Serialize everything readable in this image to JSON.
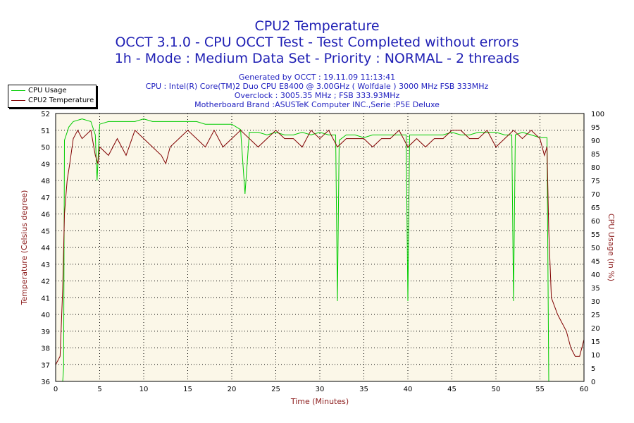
{
  "header": {
    "title": "CPU2 Temperature",
    "subtitle1": "OCCT 3.1.0 - CPU OCCT Test - Test Completed without errors",
    "subtitle2": "1h - Mode : Medium Data Set - Priority : NORMAL - 2 threads",
    "info1": "Generated by OCCT : 19.11.09 11:13:41",
    "info2": "CPU : Intel(R) Core(TM)2 Duo CPU E8400 @ 3.00GHz ( Wolfdale ) 3000 MHz FSB 333MHz",
    "info3": "Overclock : 3005.35 MHz ; FSB 333.93MHz",
    "info4": "Motherboard Brand :ASUSTeK Computer INC.,Serie :P5E Deluxe"
  },
  "legend": {
    "items": [
      {
        "label": "CPU Usage",
        "color": "#00cc00"
      },
      {
        "label": "CPU2 Temperature",
        "color": "#800000"
      }
    ]
  },
  "colors": {
    "plot_background": "#fbf7e8",
    "grid": "#000000",
    "title": "#1f1fb4",
    "axis_title": "#8b1a1a"
  },
  "chart_data": {
    "type": "line",
    "xlabel": "Time (Minutes)",
    "ylabel_left": "Temperature (Celsius degree)",
    "ylabel_right": "CPU Usage (in %)",
    "xlim": [
      0,
      60
    ],
    "ylim_left": [
      36,
      52
    ],
    "ylim_right": [
      0,
      100
    ],
    "x_ticks": [
      0,
      5,
      10,
      15,
      20,
      25,
      30,
      35,
      40,
      45,
      50,
      55,
      60
    ],
    "y_left_ticks": [
      36,
      37,
      38,
      39,
      40,
      41,
      42,
      43,
      44,
      45,
      46,
      47,
      48,
      49,
      50,
      51,
      52
    ],
    "y_right_ticks": [
      0,
      5,
      10,
      15,
      20,
      25,
      30,
      35,
      40,
      45,
      50,
      55,
      60,
      65,
      70,
      75,
      80,
      85,
      90,
      95,
      100
    ],
    "grid": true,
    "series": [
      {
        "name": "CPU Usage",
        "axis": "right",
        "color": "#00cc00",
        "x": [
          0,
          0.8,
          0.9,
          1.0,
          1.2,
          1.5,
          2,
          3,
          4,
          4.5,
          4.7,
          5,
          6,
          7,
          8,
          9,
          10,
          11,
          12,
          13,
          14,
          15,
          16,
          17,
          18,
          19,
          20,
          21,
          21.5,
          22,
          23,
          24,
          25,
          26,
          27,
          28,
          29,
          30,
          31,
          31.8,
          32.0,
          32.2,
          33,
          34,
          35,
          36,
          37,
          38,
          39,
          39.8,
          40.0,
          40.2,
          41,
          42,
          43,
          44,
          45,
          46,
          47,
          48,
          49,
          50,
          51,
          51.8,
          52.0,
          52.2,
          53,
          54,
          55,
          55.8,
          56.0,
          56.2,
          57,
          58,
          59,
          60
        ],
        "values": [
          0,
          0,
          5,
          90,
          92,
          95,
          97,
          98,
          97,
          92,
          75,
          96,
          97,
          97,
          97,
          97,
          98,
          97,
          97,
          97,
          97,
          97,
          97,
          96,
          96,
          96,
          96,
          94,
          70,
          93,
          93,
          92,
          93,
          92,
          92,
          93,
          92,
          93,
          92,
          92,
          30,
          90,
          92,
          92,
          91,
          92,
          92,
          92,
          92,
          92,
          30,
          92,
          92,
          92,
          92,
          92,
          93,
          92,
          92,
          93,
          93,
          93,
          92,
          92,
          30,
          92,
          93,
          92,
          91,
          91,
          0,
          0,
          0,
          0,
          0,
          0
        ]
      },
      {
        "name": "CPU2 Temperature",
        "axis": "left",
        "color": "#800000",
        "x": [
          0,
          0.5,
          0.8,
          1.0,
          1.3,
          1.6,
          2,
          2.5,
          3,
          4,
          4.5,
          4.8,
          5,
          6,
          7,
          8,
          9,
          10,
          11,
          12,
          12.5,
          13,
          14,
          15,
          16,
          17,
          18,
          19,
          20,
          21,
          22,
          23,
          24,
          25,
          26,
          27,
          28,
          29,
          30,
          31,
          32,
          33,
          34,
          35,
          36,
          37,
          38,
          39,
          40,
          41,
          42,
          43,
          44,
          45,
          46,
          47,
          48,
          49,
          50,
          51,
          52,
          53,
          54,
          55,
          55.5,
          55.8,
          56.0,
          56.3,
          57,
          58,
          58.5,
          59,
          59.5,
          60
        ],
        "values": [
          37,
          37.5,
          41.5,
          46,
          48,
          49,
          50.5,
          51,
          50.5,
          51,
          49.5,
          49,
          50,
          49.5,
          50.5,
          49.5,
          51,
          50.5,
          50,
          49.5,
          49,
          50,
          50.5,
          51,
          50.5,
          50,
          51,
          50,
          50.5,
          51,
          50.5,
          50,
          50.5,
          51,
          50.5,
          50.5,
          50,
          51,
          50.5,
          51,
          50,
          50.5,
          50.5,
          50.5,
          50,
          50.5,
          50.5,
          51,
          50,
          50.5,
          50,
          50.5,
          50.5,
          51,
          51,
          50.5,
          50.5,
          51,
          50,
          50.5,
          51,
          50.5,
          51,
          50.5,
          49.5,
          50,
          45,
          41,
          40,
          39,
          38,
          37.5,
          37.5,
          38.5
        ]
      }
    ]
  }
}
